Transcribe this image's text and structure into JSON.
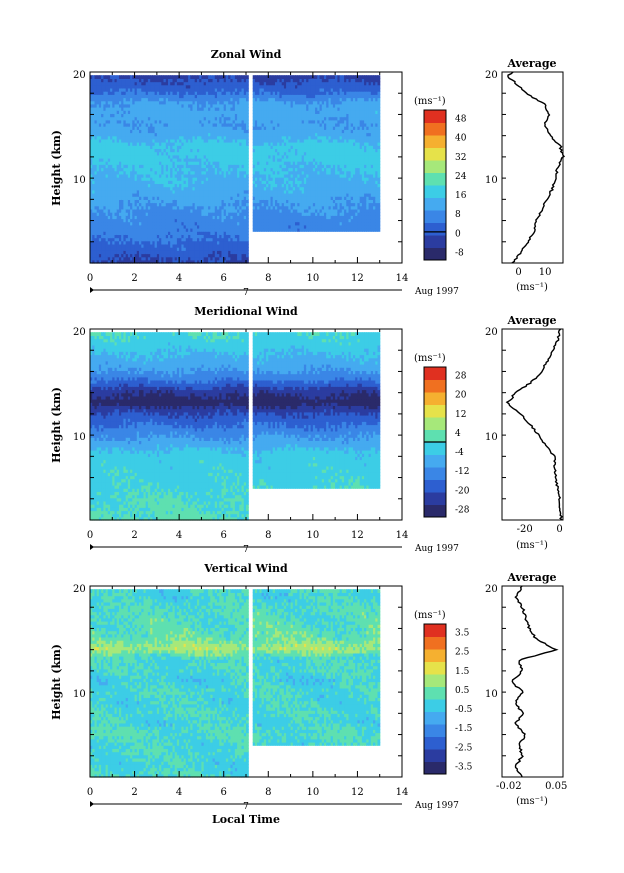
{
  "chart_data": [
    {
      "type": "heatmap",
      "title": "Zonal Wind",
      "ylabel": "Height (km)",
      "xlim": [
        0,
        14
      ],
      "ylim": [
        2,
        20
      ],
      "x_ticks": [
        "0",
        "2",
        "4",
        "6",
        "8",
        "10",
        "12",
        "14"
      ],
      "y_ticks": [
        "10",
        "20"
      ],
      "date_label": "Aug 1997",
      "date_marker": "7",
      "data_gap_x": [
        7.0,
        7.2
      ],
      "data_end_x": 13.0,
      "right_segment_min_height_km": 5.0,
      "colorbar": {
        "unit": "(ms⁻¹)",
        "tick_labels": [
          "48",
          "40",
          "32",
          "24",
          "16",
          "8",
          "0",
          "-8"
        ],
        "range": [
          -12,
          52
        ],
        "zero_line": 0
      },
      "profile_values": [
        [
          -2,
          2
        ],
        [
          1,
          3
        ],
        [
          4,
          4
        ],
        [
          6,
          5
        ],
        [
          7,
          6
        ],
        [
          9,
          7
        ],
        [
          11,
          8
        ],
        [
          13,
          9
        ],
        [
          14,
          10
        ],
        [
          15,
          11
        ],
        [
          17,
          12
        ],
        [
          16,
          13
        ],
        [
          12,
          14
        ],
        [
          10,
          15
        ],
        [
          12,
          16
        ],
        [
          10,
          17
        ],
        [
          3,
          18
        ],
        [
          -1,
          19
        ],
        [
          -4,
          19.6
        ],
        [
          -2,
          20
        ]
      ],
      "profile": {
        "title": "Average",
        "xlabel": "(ms⁻¹)",
        "x_ticks": [
          "0",
          "10"
        ],
        "xlim": [
          -6,
          17
        ],
        "ylim": [
          2,
          20
        ],
        "y_ticks": [
          "10",
          "20"
        ]
      }
    },
    {
      "type": "heatmap",
      "title": "Meridional Wind",
      "ylabel": "Height (km)",
      "xlim": [
        0,
        14
      ],
      "ylim": [
        2,
        20
      ],
      "x_ticks": [
        "0",
        "2",
        "4",
        "6",
        "8",
        "10",
        "12",
        "14"
      ],
      "y_ticks": [
        "10",
        "20"
      ],
      "date_label": "Aug 1997",
      "date_marker": "7",
      "data_gap_x": [
        7.0,
        7.2
      ],
      "data_end_x": 13.0,
      "right_segment_min_height_km": 5.0,
      "colorbar": {
        "unit": "(ms⁻¹)",
        "tick_labels": [
          "28",
          "20",
          "12",
          "4",
          "-4",
          "-12",
          "-20",
          "-28"
        ],
        "range": [
          -32,
          32
        ],
        "zero_line": 0
      },
      "profile_values": [
        [
          1,
          2
        ],
        [
          0,
          4
        ],
        [
          -2,
          6
        ],
        [
          -3,
          8
        ],
        [
          -12,
          10
        ],
        [
          -22,
          12
        ],
        [
          -30,
          13
        ],
        [
          -25,
          14
        ],
        [
          -16,
          15
        ],
        [
          -10,
          16
        ],
        [
          -7,
          17
        ],
        [
          -4,
          18
        ],
        [
          -1,
          19
        ],
        [
          0,
          20
        ]
      ],
      "profile": {
        "title": "Average",
        "xlabel": "(ms⁻¹)",
        "x_ticks": [
          "-20",
          "0"
        ],
        "xlim": [
          -33,
          2
        ],
        "ylim": [
          2,
          20
        ],
        "y_ticks": [
          "10",
          "20"
        ]
      }
    },
    {
      "type": "heatmap",
      "title": "Vertical Wind",
      "ylabel": "Height (km)",
      "xlabel": "Local Time",
      "xlim": [
        0,
        14
      ],
      "ylim": [
        2,
        20
      ],
      "x_ticks": [
        "0",
        "2",
        "4",
        "6",
        "8",
        "10",
        "12",
        "14"
      ],
      "y_ticks": [
        "10",
        "20"
      ],
      "date_label": "Aug 1997",
      "date_marker": "7",
      "data_gap_x": [
        7.0,
        7.2
      ],
      "data_end_x": 13.0,
      "right_segment_min_height_km": 5.0,
      "colorbar": {
        "unit": "(ms⁻¹)",
        "tick_labels": [
          "3.5",
          "2.5",
          "1.5",
          "0.5",
          "-0.5",
          "-1.5",
          "-2.5",
          "-3.5"
        ],
        "range": [
          -4,
          4
        ]
      },
      "profile_values": [
        [
          0.0,
          2
        ],
        [
          -0.01,
          3
        ],
        [
          0.0,
          4
        ],
        [
          -0.005,
          5
        ],
        [
          0.005,
          6
        ],
        [
          -0.01,
          7
        ],
        [
          0.0,
          8
        ],
        [
          -0.01,
          9
        ],
        [
          0.0,
          10
        ],
        [
          -0.015,
          11
        ],
        [
          0.0,
          12
        ],
        [
          -0.005,
          13
        ],
        [
          0.05,
          14
        ],
        [
          0.02,
          15
        ],
        [
          0.01,
          16
        ],
        [
          0.005,
          17
        ],
        [
          0.0,
          18
        ],
        [
          -0.01,
          19
        ],
        [
          0.0,
          20
        ]
      ],
      "profile": {
        "title": "Average",
        "xlabel": "(ms⁻¹)",
        "x_ticks": [
          "-0.02",
          "0.05"
        ],
        "xlim": [
          -0.03,
          0.06
        ],
        "ylim": [
          2,
          20
        ],
        "y_ticks": [
          "10",
          "20"
        ]
      }
    }
  ],
  "colormap": [
    "#2a2a6a",
    "#2b3ca0",
    "#2d5fd0",
    "#3a86e6",
    "#45aaf0",
    "#3ccde6",
    "#5ee0b0",
    "#a6e87a",
    "#e6e24a",
    "#f5b030",
    "#f07020",
    "#e03020"
  ]
}
